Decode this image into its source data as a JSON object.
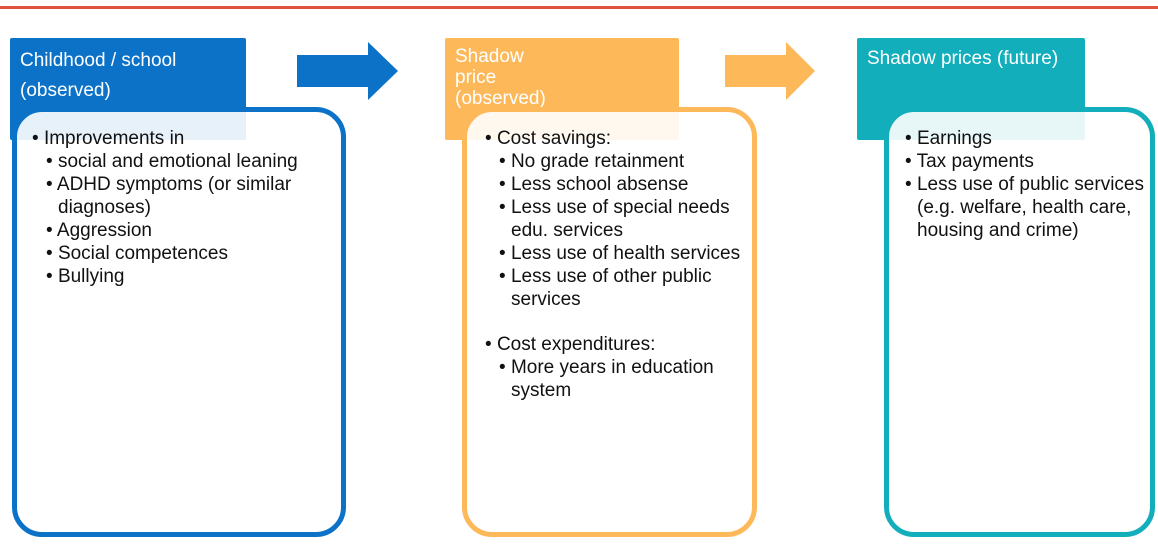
{
  "columns": [
    {
      "title": "Childhood / school (observed)",
      "groups": [
        {
          "heading": "Improvements in",
          "items": [
            "social and emotional leaning",
            "ADHD symptoms (or similar diagnoses)",
            "Aggression",
            "Social competences",
            "Bullying"
          ]
        }
      ]
    },
    {
      "title": "Shadow price (observed)",
      "groups": [
        {
          "heading": "Cost savings:",
          "items": [
            "No grade retainment",
            "Less school absense",
            "Less use of special needs edu. services",
            "Less use of health services",
            "Less use of other public services"
          ]
        },
        {
          "heading": "Cost expenditures:",
          "items": [
            "More years in education system"
          ]
        }
      ]
    },
    {
      "title": "Shadow prices (future)",
      "items": [
        "Earnings",
        "Tax payments",
        "Less use of public services (e.g. welfare, health care, housing and crime)"
      ]
    }
  ]
}
